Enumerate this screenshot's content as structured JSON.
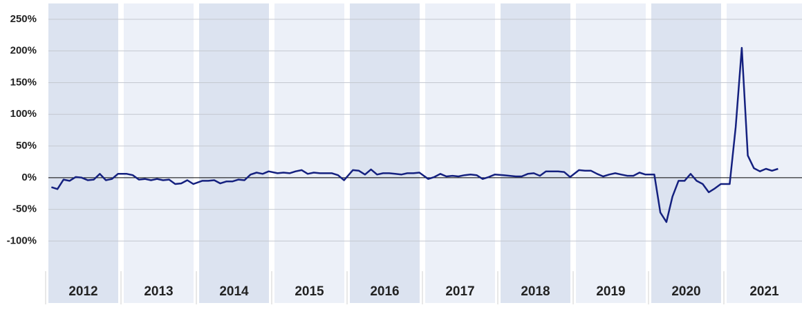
{
  "chart_data": {
    "type": "line",
    "categories": [
      "2012",
      "2013",
      "2014",
      "2015",
      "2016",
      "2017",
      "2018",
      "2019",
      "2020",
      "2021"
    ],
    "series": [
      {
        "color": "#14207f",
        "values": [
          [
            -15,
            -18,
            -3,
            -5,
            1,
            0,
            -4,
            -3,
            6,
            -4,
            -2,
            6
          ],
          [
            6,
            4,
            -3,
            -2,
            -4,
            -2,
            -4,
            -3,
            -10,
            -9,
            -4,
            -10
          ],
          [
            -5,
            -5,
            -4,
            -9,
            -6,
            -6,
            -3,
            -4,
            5,
            8,
            6,
            10
          ],
          [
            7,
            8,
            7,
            10,
            12,
            6,
            8,
            7,
            7,
            7,
            4,
            -4
          ],
          [
            12,
            11,
            5,
            13,
            5,
            7,
            7,
            6,
            5,
            7,
            7,
            8
          ],
          [
            -2,
            1,
            6,
            2,
            3,
            2,
            4,
            5,
            4,
            -2,
            1,
            5
          ],
          [
            4,
            3,
            2,
            2,
            6,
            7,
            3,
            10,
            10,
            10,
            9,
            1
          ],
          [
            12,
            11,
            11,
            6,
            2,
            5,
            7,
            5,
            3,
            3,
            8,
            5
          ],
          [
            5,
            -55,
            -70,
            -30,
            -5,
            -5,
            6,
            -5,
            -10,
            -23,
            -17,
            -10
          ],
          [
            -10,
            80,
            205,
            35,
            15,
            10,
            14,
            11,
            14
          ]
        ]
      }
    ],
    "band_colors": [
      "#dce3f0",
      "#ecf0f8"
    ],
    "ylim": [
      -200,
      275
    ],
    "yticks": [
      {
        "value": -100,
        "label": "-100%"
      },
      {
        "value": -50,
        "label": "-50%"
      },
      {
        "value": 0,
        "label": "0%"
      },
      {
        "value": 50,
        "label": "50%"
      },
      {
        "value": 100,
        "label": "100%"
      },
      {
        "value": 150,
        "label": "150%"
      },
      {
        "value": 200,
        "label": "200%"
      },
      {
        "value": 250,
        "label": "250%"
      }
    ],
    "grid": true
  }
}
